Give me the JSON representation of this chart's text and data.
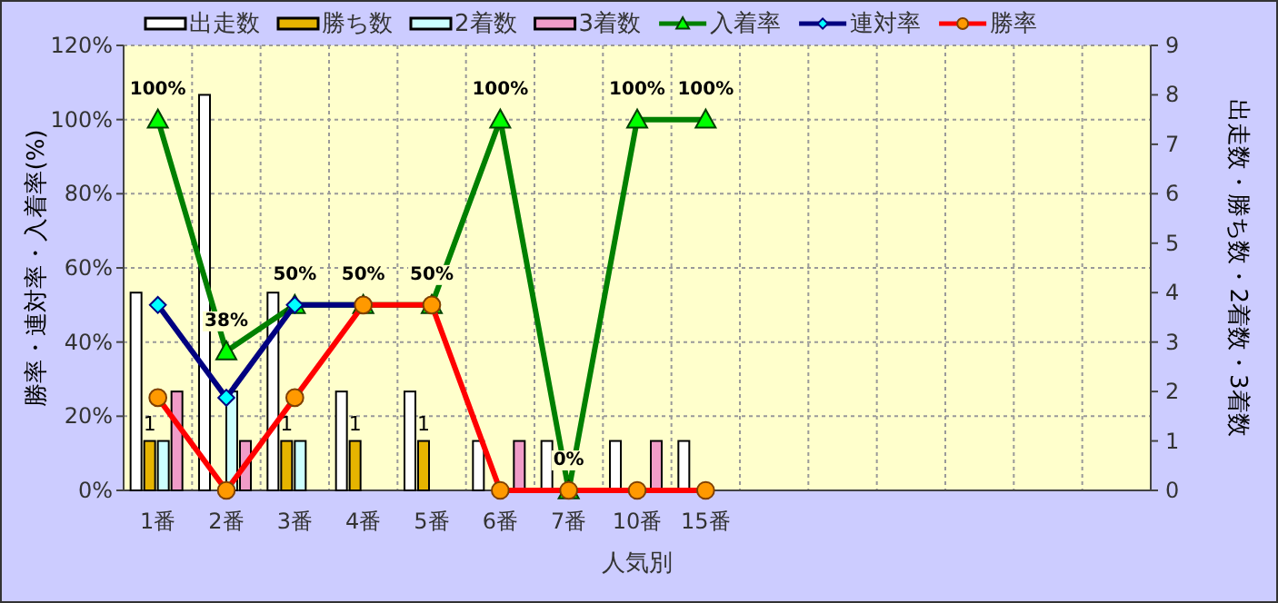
{
  "chart_data": {
    "type": "bar",
    "xlabel": "人気別",
    "ylabel": "勝率・連対率・入着率(%)",
    "y2label": "出走数・勝ち数・2着数・3着数",
    "categories": [
      "1番",
      "2番",
      "3番",
      "4番",
      "5番",
      "6番",
      "7番",
      "10番",
      "15番",
      null,
      null,
      null,
      null,
      null,
      null
    ],
    "ylim": [
      0,
      120
    ],
    "yticks": [
      {
        "value": 0,
        "label": "0%"
      },
      {
        "value": 20,
        "label": "20%"
      },
      {
        "value": 40,
        "label": "40%"
      },
      {
        "value": 60,
        "label": "60%"
      },
      {
        "value": 80,
        "label": "80%"
      },
      {
        "value": 100,
        "label": "100%"
      },
      {
        "value": 120,
        "label": "120%"
      }
    ],
    "y2lim": [
      0,
      9
    ],
    "y2ticks": [
      0,
      1,
      2,
      3,
      4,
      5,
      6,
      7,
      8,
      9
    ],
    "grid": true,
    "legend": "top",
    "series": [
      {
        "name": "出走数",
        "axis": "y2",
        "color": "#ffffff",
        "values": [
          4,
          8,
          4,
          2,
          2,
          1,
          1,
          1,
          1,
          null,
          null,
          null,
          null,
          null,
          null
        ]
      },
      {
        "name": "勝ち数",
        "axis": "y2",
        "color": "#e6b400",
        "values": [
          1,
          0,
          1,
          1,
          1,
          0,
          0,
          0,
          0,
          null,
          null,
          null,
          null,
          null,
          null
        ],
        "value_labels": [
          "1",
          null,
          "1",
          "1",
          "1",
          null,
          null,
          null,
          null,
          null,
          null,
          null,
          null,
          null,
          null
        ]
      },
      {
        "name": "2着数",
        "axis": "y2",
        "color": "#ccffff",
        "values": [
          1,
          2,
          1,
          0,
          0,
          0,
          0,
          0,
          0,
          null,
          null,
          null,
          null,
          null,
          null
        ]
      },
      {
        "name": "3着数",
        "axis": "y2",
        "color": "#f09cc8",
        "values": [
          2,
          1,
          0,
          0,
          0,
          1,
          0,
          1,
          0,
          null,
          null,
          null,
          null,
          null,
          null
        ]
      },
      {
        "name": "入着率",
        "type": "line",
        "axis": "y",
        "color": "#008000",
        "marker": "triangle",
        "values": [
          100,
          37.5,
          50,
          50,
          50,
          100,
          0,
          100,
          100,
          null,
          null,
          null,
          null,
          null,
          null
        ],
        "value_labels": [
          "100%",
          "38%",
          "50%",
          "50%",
          "50%",
          "100%",
          "0%",
          "100%",
          "100%",
          null,
          null,
          null,
          null,
          null,
          null
        ]
      },
      {
        "name": "連対率",
        "type": "line",
        "axis": "y",
        "color": "#000080",
        "marker": "diamond",
        "values": [
          50,
          25,
          50,
          50,
          null,
          null,
          null,
          null,
          null,
          null,
          null,
          null,
          null,
          null,
          null
        ]
      },
      {
        "name": "勝率",
        "type": "line",
        "axis": "y",
        "color": "#ff0000",
        "marker": "circle",
        "values": [
          25,
          0,
          25,
          50,
          50,
          0,
          0,
          0,
          0,
          null,
          null,
          null,
          null,
          null,
          null
        ]
      }
    ]
  }
}
